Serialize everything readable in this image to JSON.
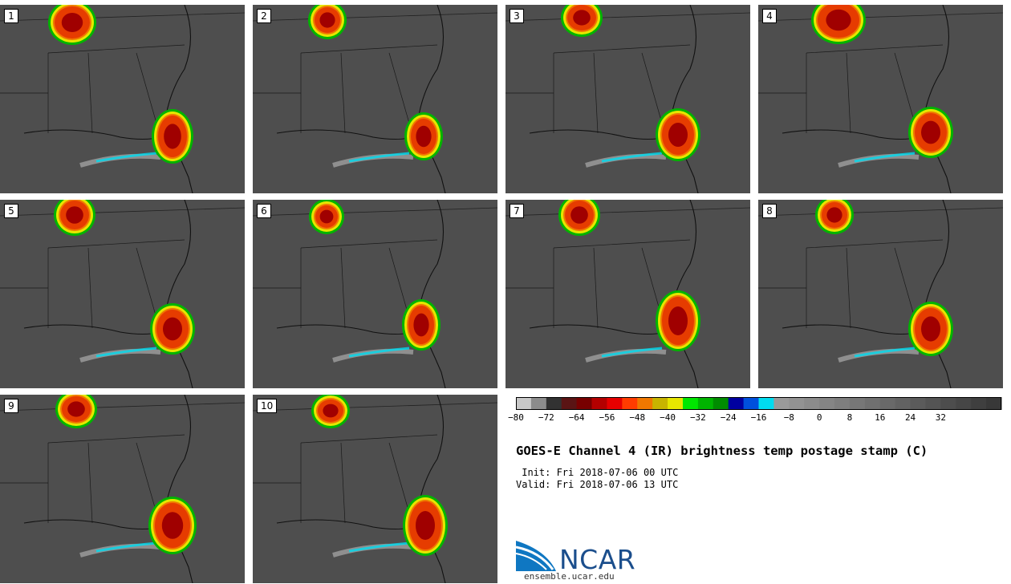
{
  "panels": [
    {
      "label": "1"
    },
    {
      "label": "2"
    },
    {
      "label": "3"
    },
    {
      "label": "4"
    },
    {
      "label": "5"
    },
    {
      "label": "6"
    },
    {
      "label": "7"
    },
    {
      "label": "8"
    },
    {
      "label": "9"
    },
    {
      "label": "10"
    }
  ],
  "colorbar": {
    "colors": [
      "#c8c8c8",
      "#8c8c8c",
      "#323232",
      "#5a1414",
      "#780000",
      "#b40000",
      "#e60000",
      "#ff3c00",
      "#f07800",
      "#c8b400",
      "#e6e600",
      "#00e600",
      "#00b400",
      "#008c00",
      "#0000a0",
      "#0050dc",
      "#00dcf0",
      "#9a9a9a",
      "#939393",
      "#8c8c8c",
      "#858585",
      "#7e7e7e",
      "#777777",
      "#707070",
      "#696969",
      "#626262",
      "#5b5b5b",
      "#545454",
      "#4d4d4d",
      "#464646",
      "#3f3f3f",
      "#383838"
    ],
    "tick_labels": [
      "−80",
      "−72",
      "−64",
      "−56",
      "−48",
      "−40",
      "−32",
      "−24",
      "−16",
      "−8",
      "0",
      "8",
      "16",
      "24",
      "32"
    ]
  },
  "title": "GOES-E Channel 4 (IR) brightness temp postage stamp (C)",
  "init": " Init: Fri 2018-07-06 00 UTC",
  "valid": "Valid: Fri 2018-07-06 13 UTC",
  "logo": {
    "text": "NCAR",
    "url": "ensemble.ucar.edu"
  }
}
